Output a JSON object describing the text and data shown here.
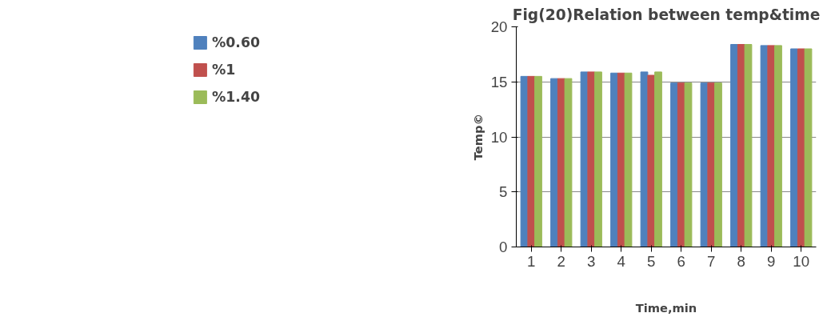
{
  "chart_data": {
    "type": "bar",
    "title": "Fig(20)Relation between temp&time",
    "xlabel": "Time,min",
    "ylabel": "Temp©",
    "categories": [
      "1",
      "2",
      "3",
      "4",
      "5",
      "6",
      "7",
      "8",
      "9",
      "10"
    ],
    "series": [
      {
        "name": "%0.60",
        "color": "#4f81bd",
        "values": [
          15.5,
          15.3,
          15.9,
          15.8,
          15.9,
          14.9,
          14.9,
          18.4,
          18.3,
          18.0
        ]
      },
      {
        "name": "%1",
        "color": "#c0504d",
        "values": [
          15.5,
          15.3,
          15.9,
          15.8,
          15.6,
          14.9,
          14.9,
          18.4,
          18.3,
          18.0
        ]
      },
      {
        "name": "%1.40",
        "color": "#9bbb59",
        "values": [
          15.5,
          15.3,
          15.9,
          15.8,
          15.9,
          14.9,
          14.9,
          18.4,
          18.3,
          18.0
        ]
      }
    ],
    "ylim": [
      0,
      20
    ],
    "yticks": [
      0,
      5,
      10,
      15,
      20
    ],
    "grid": "y",
    "legend": "left"
  }
}
